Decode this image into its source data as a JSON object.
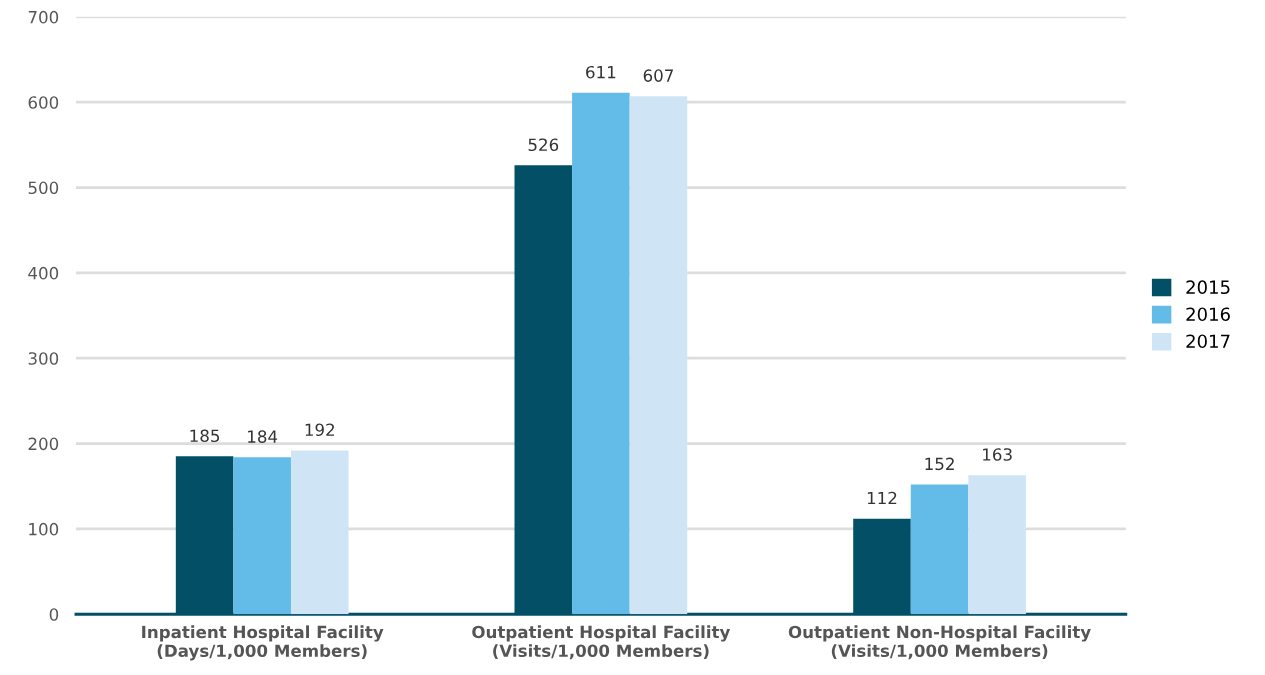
{
  "chart_data": {
    "type": "bar",
    "categories": [
      "Inpatient Hospital Facility\n(Days/1,000 Members)",
      "Outpatient Hospital Facility\n(Visits/1,000 Members)",
      "Outpatient Non-Hospital Facility\n(Visits/1,000 Members)"
    ],
    "series": [
      {
        "name": "2015",
        "color": "#034f66",
        "values": [
          185,
          526,
          112
        ]
      },
      {
        "name": "2016",
        "color": "#63bbe8",
        "values": [
          184,
          611,
          152
        ]
      },
      {
        "name": "2017",
        "color": "#cfe5f5",
        "values": [
          192,
          607,
          163
        ]
      }
    ],
    "ylim": [
      0,
      700
    ],
    "yticks": [
      0,
      100,
      200,
      300,
      400,
      500,
      600,
      700
    ],
    "grid": "y",
    "legend": "right",
    "data_labels": true
  }
}
